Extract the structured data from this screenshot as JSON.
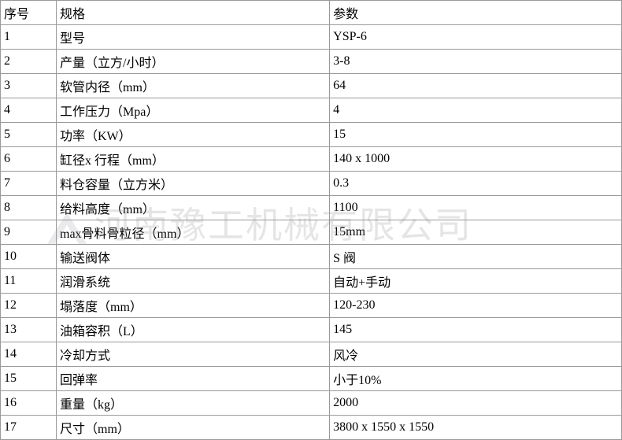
{
  "table": {
    "columns": [
      "序号",
      "规格",
      "参数"
    ],
    "rows": [
      [
        "1",
        "型号",
        "YSP-6"
      ],
      [
        "2",
        "产量（立方/小时）",
        "3-8"
      ],
      [
        "3",
        "软管内径（mm）",
        "64"
      ],
      [
        "4",
        "工作压力（Mpa）",
        "4"
      ],
      [
        "5",
        "功率（KW）",
        "15"
      ],
      [
        "6",
        "缸径x 行程（mm）",
        "140 x 1000"
      ],
      [
        "7",
        "料仓容量（立方米）",
        "0.3"
      ],
      [
        "8",
        "给料高度（mm）",
        "1100"
      ],
      [
        "9",
        "max骨料骨粒径（mm）",
        "15mm"
      ],
      [
        "10",
        "输送阀体",
        "S 阀"
      ],
      [
        "11",
        "润滑系统",
        "自动+手动"
      ],
      [
        "12",
        "塌落度（mm）",
        "120-230"
      ],
      [
        "13",
        "油箱容积（L）",
        "145"
      ],
      [
        "14",
        "冷却方式",
        "风冷"
      ],
      [
        "15",
        "回弹率",
        "小于10%"
      ],
      [
        "16",
        "重量（kg）",
        "2000"
      ],
      [
        "17",
        "尺寸（mm）",
        "3800 x 1550 x 1550"
      ]
    ],
    "border_color": "#999999",
    "background_color": "#ffffff",
    "text_color": "#000000",
    "font_size": 16
  },
  "watermark": {
    "text": "河南豫工机械有限公司",
    "color": "rgba(150,150,150,0.25)",
    "font_size": 46
  }
}
